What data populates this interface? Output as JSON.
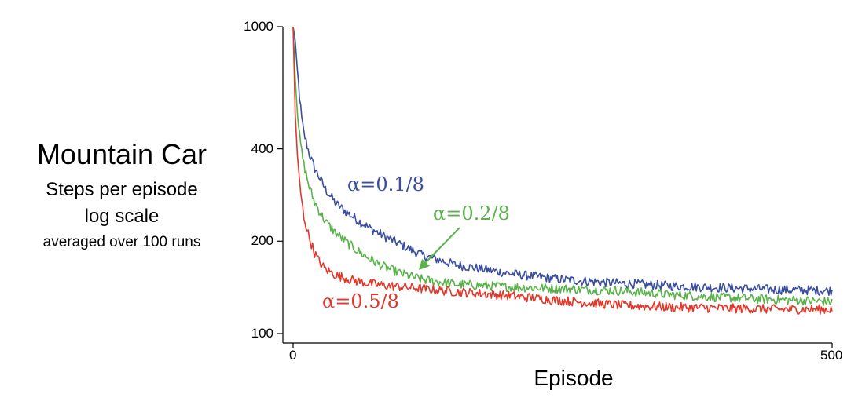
{
  "side_text": {
    "title": "Mountain Car",
    "line1": "Steps per episode",
    "line2": "log scale",
    "line3": "averaged over 100 runs"
  },
  "chart_data": {
    "type": "line",
    "title": "",
    "xlabel": "Episode",
    "ylabel": "",
    "y_scale": "log",
    "xlim": [
      0,
      500
    ],
    "ylim": [
      100,
      1000
    ],
    "x_ticks": [
      "0",
      "500"
    ],
    "y_ticks": [
      "100",
      "200",
      "400",
      "1000"
    ],
    "grid": false,
    "legend": "inline annotations",
    "annotations": [
      {
        "text": "α=0.1/8",
        "series": 0
      },
      {
        "text": "α=0.2/8",
        "series": 1,
        "arrow": true
      },
      {
        "text": "α=0.5/8",
        "series": 2
      }
    ],
    "series": [
      {
        "name": "α=0.1/8",
        "color": "#3a4e9f",
        "x": [
          0,
          2,
          4,
          6,
          8,
          10,
          15,
          20,
          25,
          30,
          40,
          50,
          60,
          70,
          80,
          90,
          100,
          120,
          150,
          200,
          250,
          300,
          350,
          400,
          450,
          500
        ],
        "y": [
          1000,
          900,
          720,
          590,
          500,
          450,
          385,
          345,
          320,
          295,
          265,
          248,
          234,
          222,
          212,
          203,
          195,
          180,
          168,
          157,
          150,
          146,
          143,
          141,
          139,
          138
        ]
      },
      {
        "name": "α=0.2/8",
        "color": "#5ab24a",
        "x": [
          0,
          2,
          4,
          6,
          8,
          10,
          15,
          20,
          25,
          30,
          40,
          50,
          60,
          70,
          80,
          90,
          100,
          120,
          150,
          200,
          250,
          300,
          350,
          400,
          450,
          500
        ],
        "y": [
          1000,
          680,
          520,
          440,
          390,
          355,
          300,
          268,
          248,
          232,
          212,
          198,
          186,
          176,
          168,
          162,
          157,
          150,
          145,
          142,
          140,
          138,
          134,
          131,
          129,
          127
        ]
      },
      {
        "name": "α=0.5/8",
        "color": "#e2372b",
        "x": [
          0,
          2,
          4,
          6,
          8,
          10,
          15,
          20,
          25,
          30,
          40,
          50,
          60,
          70,
          80,
          90,
          100,
          120,
          150,
          200,
          250,
          300,
          350,
          400,
          450,
          500
        ],
        "y": [
          1000,
          520,
          380,
          310,
          270,
          240,
          205,
          183,
          170,
          162,
          155,
          151,
          148,
          146,
          144,
          143,
          142,
          140,
          137,
          133,
          128,
          124,
          122,
          121,
          120,
          120
        ]
      }
    ]
  }
}
